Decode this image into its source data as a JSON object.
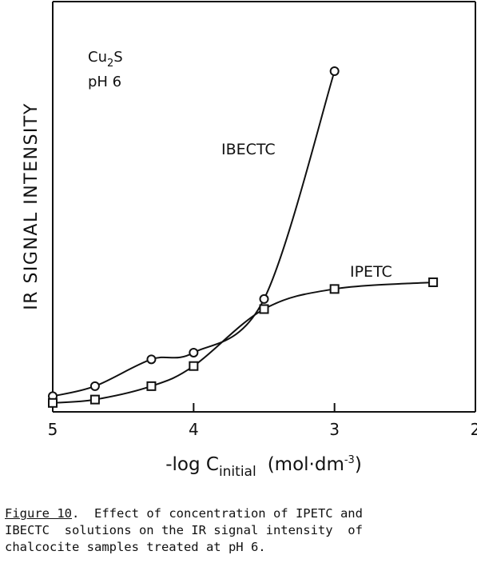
{
  "chart_data": {
    "type": "line",
    "ylabel": "IR SIGNAL INTENSITY",
    "xlabel_prefix": "-log C",
    "xlabel_subscript": "initial",
    "xlabel_unit": "(mol·dm",
    "xlabel_exponent": "-3",
    "xlabel_close": ")",
    "xlim": [
      5,
      2
    ],
    "ylim": [
      0,
      100
    ],
    "x_ticks": [
      5,
      4,
      3,
      2
    ],
    "x_tick_labels": [
      "5",
      "4",
      "3",
      "2"
    ],
    "grid": false,
    "y_tick_labels_shown": false,
    "series": [
      {
        "name": "IBECTC",
        "marker": "circle",
        "x": [
          5.0,
          4.7,
          4.3,
          4.0,
          3.5,
          3.0
        ],
        "y": [
          3,
          6,
          14,
          16,
          32,
          100
        ]
      },
      {
        "name": "IPETC",
        "marker": "square",
        "x": [
          5.0,
          4.7,
          4.3,
          4.0,
          3.5,
          3.0,
          2.3
        ],
        "y": [
          1,
          2,
          6,
          12,
          29,
          35,
          37
        ]
      }
    ],
    "annotations": {
      "sample_main": "Cu",
      "sample_sub": "2",
      "sample_tail": "S",
      "ph": "pH 6"
    }
  },
  "caption": {
    "label": "Figure 10",
    "text": ".  Effect of concentration of IPETC and\nIBECTC  solutions on the IR signal intensity  of\nchalcocite samples treated at pH 6."
  }
}
